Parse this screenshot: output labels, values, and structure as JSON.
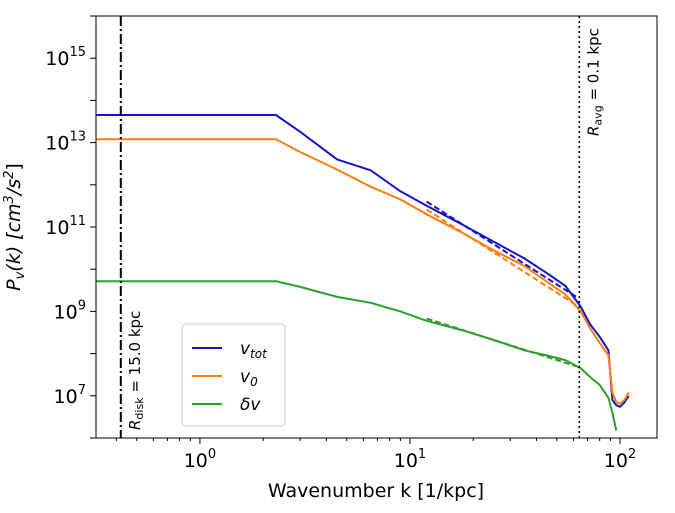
{
  "chart_data": {
    "type": "line",
    "xscale": "log",
    "yscale": "log",
    "xlim": [
      0.32,
      150
    ],
    "ylim": [
      1000000.0,
      1e+16
    ],
    "xlabel": "Wavenumber k [1/kpc]",
    "ylabel_main": "P",
    "ylabel_sub": "v",
    "ylabel_rest": "(k) [cm",
    "ylabel_sup1": "3",
    "ylabel_mid": "/s",
    "ylabel_sup2": "2",
    "ylabel_end": "]",
    "x_ticks": [
      {
        "value": 1,
        "base": "10",
        "exp": "0"
      },
      {
        "value": 10,
        "base": "10",
        "exp": "1"
      },
      {
        "value": 100,
        "base": "10",
        "exp": "2"
      }
    ],
    "y_ticks": [
      {
        "value": 10000000.0,
        "base": "10",
        "exp": "7"
      },
      {
        "value": 1000000000.0,
        "base": "10",
        "exp": "9"
      },
      {
        "value": 100000000000.0,
        "base": "10",
        "exp": "11"
      },
      {
        "value": 10000000000000.0,
        "base": "10",
        "exp": "13"
      },
      {
        "value": 1000000000000000.0,
        "base": "10",
        "exp": "15"
      }
    ],
    "series": [
      {
        "name": "v_tot",
        "label_main": "v",
        "label_sub": "tot",
        "color": "#1515c8",
        "points": [
          [
            0.32,
            45000000000000.0
          ],
          [
            2.3,
            45000000000000.0
          ],
          [
            3.0,
            18000000000000.0
          ],
          [
            4.5,
            4000000000000.0
          ],
          [
            6.5,
            2200000000000.0
          ],
          [
            9.0,
            700000000000.0
          ],
          [
            12,
            320000000000.0
          ],
          [
            18,
            110000000000.0
          ],
          [
            25,
            45000000000.0
          ],
          [
            35,
            18000000000.0
          ],
          [
            45,
            8000000000.0
          ],
          [
            55,
            4000000000.0
          ],
          [
            65,
            1300000000.0
          ],
          [
            72,
            500000000.0
          ],
          [
            80,
            250000000.0
          ],
          [
            88,
            120000000.0
          ],
          [
            92,
            8000000.0
          ],
          [
            96,
            6000000.0
          ],
          [
            100,
            5500000.0
          ],
          [
            105,
            7000000.0
          ],
          [
            110,
            10000000.0
          ]
        ]
      },
      {
        "name": "v_0",
        "label_main": "v",
        "label_sub": "0",
        "color": "#ff7f0e",
        "points": [
          [
            0.32,
            12000000000000.0
          ],
          [
            2.3,
            12000000000000.0
          ],
          [
            3.0,
            6000000000000.0
          ],
          [
            4.5,
            2300000000000.0
          ],
          [
            6.5,
            900000000000.0
          ],
          [
            9.0,
            450000000000.0
          ],
          [
            12,
            200000000000.0
          ],
          [
            18,
            70000000000.0
          ],
          [
            25,
            28000000000.0
          ],
          [
            35,
            12000000000.0
          ],
          [
            45,
            5000000000.0
          ],
          [
            55,
            2500000000.0
          ],
          [
            65,
            1000000000.0
          ],
          [
            72,
            400000000.0
          ],
          [
            80,
            180000000.0
          ],
          [
            88,
            90000000.0
          ],
          [
            92,
            12000000.0
          ],
          [
            96,
            7000000.0
          ],
          [
            100,
            6500000.0
          ],
          [
            105,
            8000000.0
          ],
          [
            110,
            12000000.0
          ]
        ]
      },
      {
        "name": "δv",
        "label_main": "δv",
        "label_sub": "",
        "color": "#2ca02c",
        "points": [
          [
            0.32,
            5200000000.0
          ],
          [
            2.3,
            5200000000.0
          ],
          [
            3.0,
            3800000000.0
          ],
          [
            4.5,
            2200000000.0
          ],
          [
            6.5,
            1600000000.0
          ],
          [
            9.0,
            1000000000.0
          ],
          [
            12,
            600000000.0
          ],
          [
            18,
            350000000.0
          ],
          [
            25,
            210000000.0
          ],
          [
            35,
            120000000.0
          ],
          [
            45,
            90000000.0
          ],
          [
            55,
            70000000.0
          ],
          [
            65,
            45000000.0
          ],
          [
            72,
            28000000.0
          ],
          [
            80,
            18000000.0
          ],
          [
            88,
            9000000.0
          ],
          [
            92,
            4000000.0
          ],
          [
            96,
            1500000.0
          ]
        ]
      }
    ],
    "fits": [
      {
        "series": "v_tot",
        "color": "#1515c8",
        "points": [
          [
            12,
            400000000000.0
          ],
          [
            62,
            2200000000.0
          ]
        ]
      },
      {
        "series": "v_0",
        "color": "#ff7f0e",
        "points": [
          [
            12,
            260000000000.0
          ],
          [
            62,
            1400000000.0
          ]
        ]
      },
      {
        "series": "δv",
        "color": "#2ca02c",
        "points": [
          [
            12,
            680000000.0
          ],
          [
            62,
            50000000.0
          ]
        ]
      }
    ],
    "vlines": [
      {
        "x": 0.42,
        "style": "dashdot",
        "label": "R",
        "label_sub": "disk",
        "label_rest": " = 15.0 kpc",
        "label_pos": "bottom"
      },
      {
        "x": 64,
        "style": "dotted",
        "label": "R",
        "label_sub": "avg",
        "label_rest": " = 0.1 kpc",
        "label_pos": "top"
      }
    ],
    "legend_position": "lower-left"
  }
}
